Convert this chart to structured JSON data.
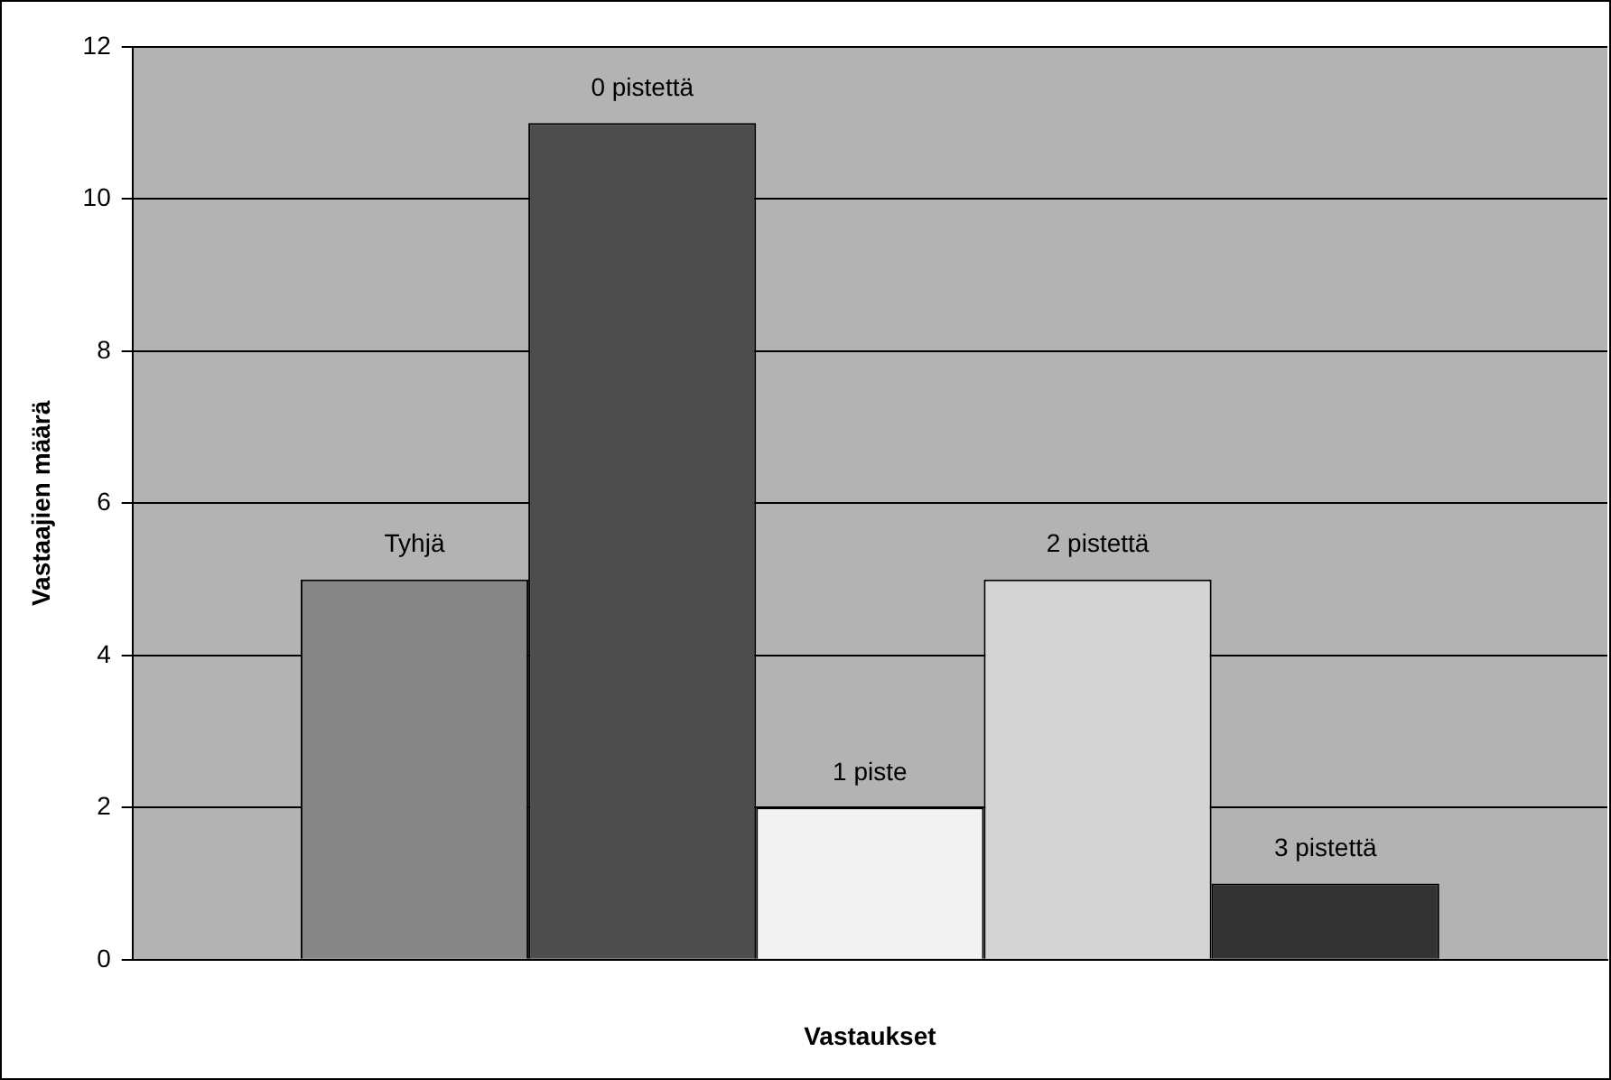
{
  "chart_data": {
    "type": "bar",
    "xlabel": "Vastaukset",
    "ylabel": "Vastaajien määrä",
    "categories": [
      null
    ],
    "series": [
      {
        "name": "Tyhjä",
        "color": "#868686",
        "values": [
          5
        ]
      },
      {
        "name": "0 pistettä",
        "color": "#4d4d4d",
        "values": [
          11
        ]
      },
      {
        "name": "1 piste",
        "color": "#f2f2f2",
        "values": [
          2
        ]
      },
      {
        "name": "2 pistettä",
        "color": "#d4d4d4",
        "values": [
          5
        ]
      },
      {
        "name": "3 pistettä",
        "color": "#333333",
        "values": [
          1
        ]
      }
    ],
    "ylim": [
      0,
      12
    ],
    "yticks": [
      0,
      2,
      4,
      6,
      8,
      10,
      12
    ],
    "grid": "y"
  }
}
